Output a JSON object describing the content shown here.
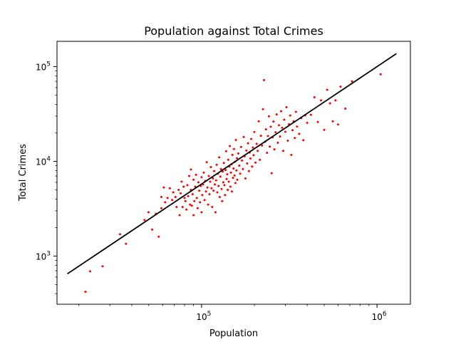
{
  "chart_data": {
    "type": "scatter",
    "title": "Population against Total Crimes",
    "xlabel": "Population",
    "ylabel": "Total Crimes",
    "xscale": "log",
    "yscale": "log",
    "xlim": [
      15000,
      1550000
    ],
    "ylim": [
      310,
      185000
    ],
    "grid": false,
    "legend": "none",
    "x_ticks": [
      {
        "base": "10",
        "exp": "5",
        "value": 100000
      },
      {
        "base": "10",
        "exp": "6",
        "value": 1000000
      }
    ],
    "y_ticks": [
      {
        "base": "10",
        "exp": "3",
        "value": 1000
      },
      {
        "base": "10",
        "exp": "4",
        "value": 10000
      },
      {
        "base": "10",
        "exp": "5",
        "value": 100000
      }
    ],
    "colors": {
      "points": "#ff0000",
      "fit_line": "#000000",
      "axes": "#000000"
    },
    "fit_line": {
      "x": [
        17200,
        1290000
      ],
      "y": [
        650,
        137000
      ]
    },
    "series": [
      {
        "points": [
          [
            21800,
            420
          ],
          [
            23200,
            690
          ],
          [
            27300,
            780
          ],
          [
            34300,
            1700
          ],
          [
            37100,
            1350
          ],
          [
            47300,
            2400
          ],
          [
            49900,
            2900
          ],
          [
            52300,
            1900
          ],
          [
            55000,
            2800
          ],
          [
            57000,
            1600
          ],
          [
            59000,
            3200
          ],
          [
            59000,
            4200
          ],
          [
            61000,
            5300
          ],
          [
            62000,
            3700
          ],
          [
            64000,
            4100
          ],
          [
            66000,
            5200
          ],
          [
            68000,
            3900
          ],
          [
            69000,
            4700
          ],
          [
            71000,
            4200
          ],
          [
            72000,
            3300
          ],
          [
            74000,
            5000
          ],
          [
            75000,
            2700
          ],
          [
            76000,
            4600
          ],
          [
            77000,
            6100
          ],
          [
            78000,
            3300
          ],
          [
            79000,
            5400
          ],
          [
            80000,
            4100
          ],
          [
            81000,
            3800
          ],
          [
            82000,
            3100
          ],
          [
            83000,
            5600
          ],
          [
            84000,
            4300
          ],
          [
            85000,
            7000
          ],
          [
            86000,
            3500
          ],
          [
            87000,
            5000
          ],
          [
            87000,
            8200
          ],
          [
            88000,
            3400
          ],
          [
            89000,
            4500
          ],
          [
            90000,
            6400
          ],
          [
            90000,
            2700
          ],
          [
            91000,
            3800
          ],
          [
            92000,
            5400
          ],
          [
            93000,
            7200
          ],
          [
            94000,
            4100
          ],
          [
            95000,
            3200
          ],
          [
            96000,
            6000
          ],
          [
            97000,
            4900
          ],
          [
            98000,
            3700
          ],
          [
            99000,
            5500
          ],
          [
            100000,
            6800
          ],
          [
            100000,
            2900
          ],
          [
            101000,
            4400
          ],
          [
            102000,
            5700
          ],
          [
            103000,
            7600
          ],
          [
            104000,
            3900
          ],
          [
            105000,
            6200
          ],
          [
            106000,
            4800
          ],
          [
            107000,
            9800
          ],
          [
            108000,
            5300
          ],
          [
            109000,
            3500
          ],
          [
            110000,
            7000
          ],
          [
            111000,
            4500
          ],
          [
            112000,
            6100
          ],
          [
            113000,
            8700
          ],
          [
            114000,
            5200
          ],
          [
            115000,
            3300
          ],
          [
            116000,
            6600
          ],
          [
            117000,
            4900
          ],
          [
            118000,
            7900
          ],
          [
            119000,
            5700
          ],
          [
            120000,
            2900
          ],
          [
            121000,
            6300
          ],
          [
            122000,
            9200
          ],
          [
            123000,
            4700
          ],
          [
            124000,
            7400
          ],
          [
            125000,
            5500
          ],
          [
            126000,
            11000
          ],
          [
            127000,
            4200
          ],
          [
            128000,
            6900
          ],
          [
            129000,
            8300
          ],
          [
            130000,
            5100
          ],
          [
            131000,
            3800
          ],
          [
            132000,
            7800
          ],
          [
            133000,
            6000
          ],
          [
            134000,
            9600
          ],
          [
            135000,
            5600
          ],
          [
            136000,
            4400
          ],
          [
            137000,
            8100
          ],
          [
            138000,
            12800
          ],
          [
            139000,
            6500
          ],
          [
            140000,
            7300
          ],
          [
            141000,
            5000
          ],
          [
            142000,
            10400
          ],
          [
            143000,
            6100
          ],
          [
            144000,
            8800
          ],
          [
            145000,
            14500
          ],
          [
            146000,
            5400
          ],
          [
            147000,
            7600
          ],
          [
            148000,
            9300
          ],
          [
            149000,
            4800
          ],
          [
            150000,
            11700
          ],
          [
            151000,
            6700
          ],
          [
            152000,
            8400
          ],
          [
            153000,
            13500
          ],
          [
            154000,
            7100
          ],
          [
            155000,
            9900
          ],
          [
            156000,
            5900
          ],
          [
            157000,
            16800
          ],
          [
            158000,
            8000
          ],
          [
            159000,
            10800
          ],
          [
            160000,
            6400
          ],
          [
            162000,
            12100
          ],
          [
            164000,
            9000
          ],
          [
            166000,
            7400
          ],
          [
            168000,
            14200
          ],
          [
            170000,
            10200
          ],
          [
            172000,
            8300
          ],
          [
            174000,
            18100
          ],
          [
            176000,
            11300
          ],
          [
            178000,
            6600
          ],
          [
            180000,
            13000
          ],
          [
            182000,
            9500
          ],
          [
            184000,
            15500
          ],
          [
            186000,
            7900
          ],
          [
            188000,
            12400
          ],
          [
            190000,
            10700
          ],
          [
            192000,
            17200
          ],
          [
            194000,
            8800
          ],
          [
            196000,
            14000
          ],
          [
            198000,
            11600
          ],
          [
            200000,
            20400
          ],
          [
            203000,
            9700
          ],
          [
            206000,
            15300
          ],
          [
            209000,
            12900
          ],
          [
            212000,
            26500
          ],
          [
            215000,
            10400
          ],
          [
            218000,
            18600
          ],
          [
            221000,
            14700
          ],
          [
            224000,
            35500
          ],
          [
            227000,
            72000
          ],
          [
            230000,
            16100
          ],
          [
            233000,
            21800
          ],
          [
            236000,
            12300
          ],
          [
            239000,
            18500
          ],
          [
            242000,
            29900
          ],
          [
            245000,
            14300
          ],
          [
            248000,
            23200
          ],
          [
            251000,
            7500
          ],
          [
            254000,
            17900
          ],
          [
            257000,
            26300
          ],
          [
            260000,
            13400
          ],
          [
            264000,
            20300
          ],
          [
            268000,
            31300
          ],
          [
            272000,
            15700
          ],
          [
            276000,
            24100
          ],
          [
            280000,
            18300
          ],
          [
            284000,
            33800
          ],
          [
            288000,
            22600
          ],
          [
            292000,
            12900
          ],
          [
            296000,
            27500
          ],
          [
            300000,
            20500
          ],
          [
            305000,
            37300
          ],
          [
            310000,
            16500
          ],
          [
            315000,
            24700
          ],
          [
            320000,
            30500
          ],
          [
            325000,
            11700
          ],
          [
            330000,
            21300
          ],
          [
            335000,
            26500
          ],
          [
            340000,
            17600
          ],
          [
            345000,
            33300
          ],
          [
            350000,
            23300
          ],
          [
            360000,
            19500
          ],
          [
            370000,
            28600
          ],
          [
            380000,
            16700
          ],
          [
            390000,
            30600
          ],
          [
            400000,
            25500
          ],
          [
            420000,
            31000
          ],
          [
            440000,
            47500
          ],
          [
            460000,
            26000
          ],
          [
            480000,
            44000
          ],
          [
            500000,
            21500
          ],
          [
            520000,
            57000
          ],
          [
            540000,
            41000
          ],
          [
            560000,
            26500
          ],
          [
            580000,
            44000
          ],
          [
            600000,
            24500
          ],
          [
            620000,
            61500
          ],
          [
            660000,
            36000
          ],
          [
            720000,
            70000
          ],
          [
            1050000,
            83000
          ]
        ]
      }
    ]
  }
}
